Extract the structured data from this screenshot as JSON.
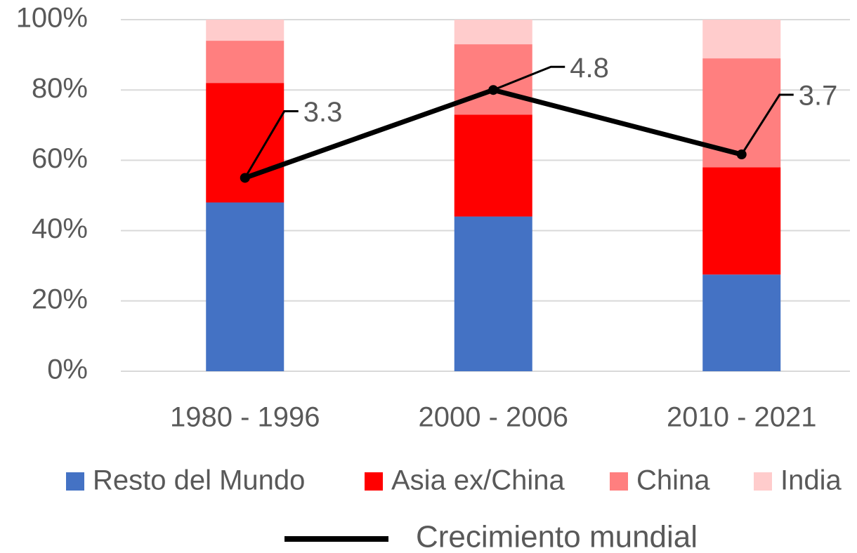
{
  "chart_data": {
    "type": "bar",
    "categories": [
      "1980  - 1996",
      "2000 - 2006",
      "2010 - 2021"
    ],
    "stacked": true,
    "series": [
      {
        "name": "Resto del Mundo",
        "color": "#4472c4",
        "values": [
          48,
          44,
          27.5
        ]
      },
      {
        "name": "Asia ex/China",
        "color": "#ff0000",
        "values": [
          34,
          29,
          30.5
        ]
      },
      {
        "name": "China",
        "color": "#ff7f7f",
        "values": [
          12,
          20,
          31
        ]
      },
      {
        "name": "India",
        "color": "#ffcccc",
        "values": [
          6,
          7,
          11
        ]
      },
      {
        "name": "Crecimiento mundial",
        "type": "line",
        "color": "#000000",
        "axis": "y2",
        "values": [
          3.3,
          4.8,
          3.7
        ]
      }
    ],
    "ylim": [
      0,
      100
    ],
    "yticks": [
      {
        "value": 0,
        "label": "0%"
      },
      {
        "value": 20,
        "label": "20%"
      },
      {
        "value": 40,
        "label": "40%"
      },
      {
        "value": 60,
        "label": "60%"
      },
      {
        "value": 80,
        "label": "80%"
      },
      {
        "value": 100,
        "label": "100%"
      }
    ],
    "y2lim": [
      0,
      6
    ],
    "grid": true,
    "legend": "bottom"
  }
}
